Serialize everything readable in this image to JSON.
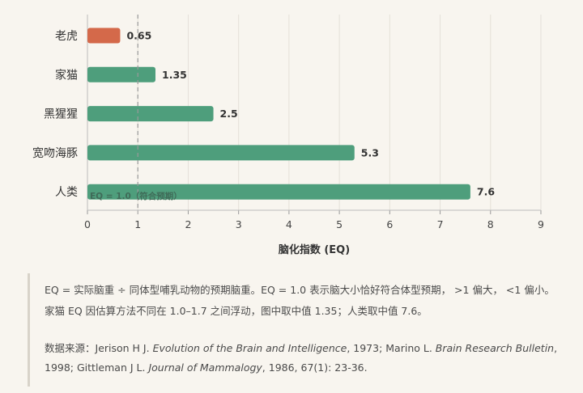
{
  "chart_data": {
    "type": "bar",
    "orientation": "horizontal",
    "categories": [
      "老虎",
      "家猫",
      "黑猩猩",
      "宽吻海豚",
      "人类"
    ],
    "values": [
      0.65,
      1.35,
      2.5,
      5.3,
      7.6
    ],
    "value_labels": [
      "0.65",
      "1.35",
      "2.5",
      "5.3",
      "7.6"
    ],
    "bar_colors": [
      "#d4694a",
      "#4e9e7c",
      "#4e9e7c",
      "#4e9e7c",
      "#4e9e7c"
    ],
    "xlabel": "脑化指数 (EQ)",
    "xlim": [
      0,
      9
    ],
    "xticks": [
      "0",
      "1",
      "2",
      "3",
      "4",
      "5",
      "6",
      "7",
      "8",
      "9"
    ],
    "reference_line": {
      "x": 1.0,
      "label": "EQ = 1.0（符合预期）",
      "style": "dashed"
    },
    "grid": true
  },
  "notes": {
    "line1": "EQ = 实际脑重 ÷ 同体型哺乳动物的预期脑重。EQ = 1.0 表示脑大小恰好符合体型预期，  >1 偏大，  <1 偏小。",
    "line2": "家猫 EQ 因估算方法不同在 1.0–1.7 之间浮动，图中取中值 1.35；人类取中值 7.6。",
    "source_label": "数据来源：",
    "source_1a": "Jerison H J. ",
    "source_1b": "Evolution of the Brain and Intelligence",
    "source_1c": ", 1973; Marino L. ",
    "source_1d": "Brain Research Bulletin",
    "source_1e": ",",
    "source_2a": "1998; Gittleman J L. ",
    "source_2b": "Journal of Mammalogy",
    "source_2c": ", 1986, 67(1): 23-36."
  }
}
